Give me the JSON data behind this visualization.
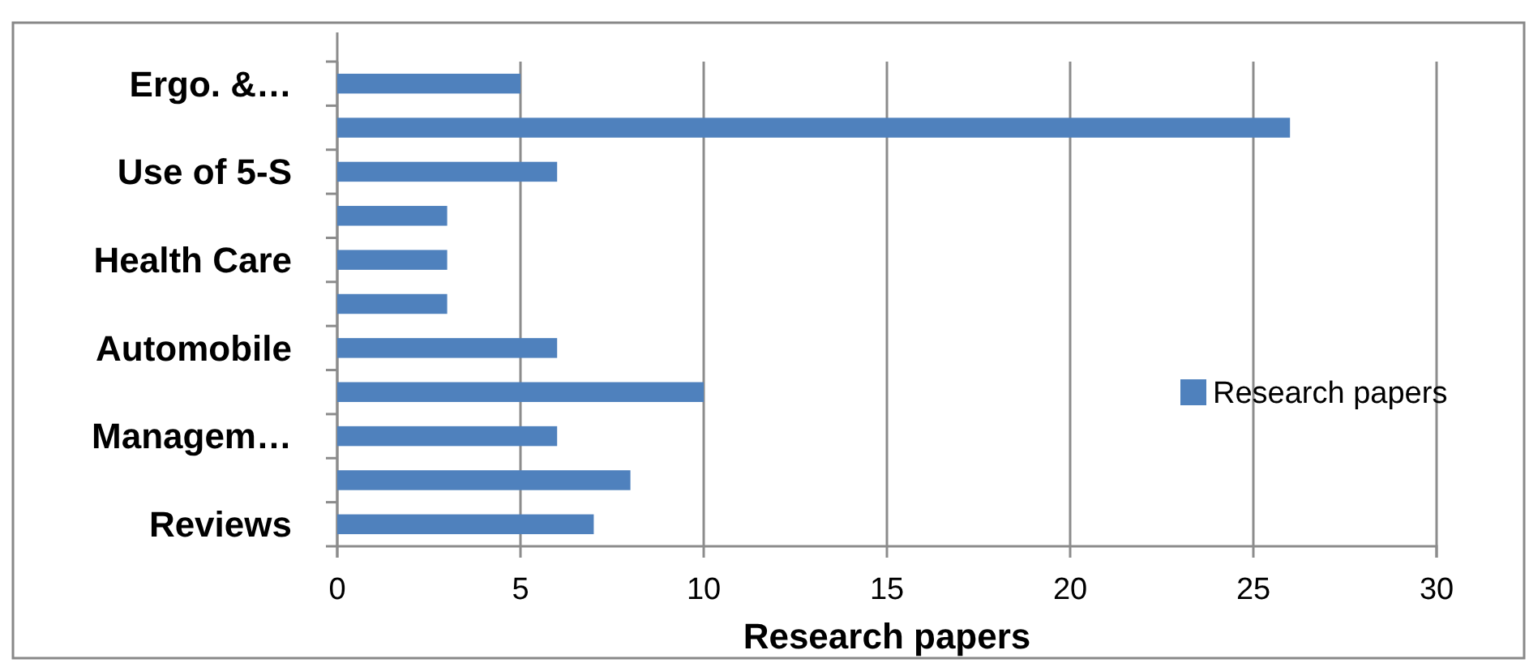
{
  "chart_data": {
    "type": "bar",
    "orientation": "horizontal",
    "xlabel": "Research papers",
    "categories": [
      "Ergo. &…",
      null,
      "Use of 5-S",
      null,
      "Health Care",
      null,
      "Automobile",
      null,
      "Managem…",
      null,
      "Reviews"
    ],
    "series": [
      {
        "name": "Research papers",
        "color": "#4f81bd",
        "values": [
          5,
          26,
          6,
          3,
          3,
          3,
          6,
          10,
          6,
          8,
          7
        ]
      }
    ],
    "xlim": [
      0,
      30
    ],
    "xticks": [
      0,
      5,
      10,
      15,
      20,
      25,
      30
    ],
    "grid": "x",
    "legend": "right"
  }
}
